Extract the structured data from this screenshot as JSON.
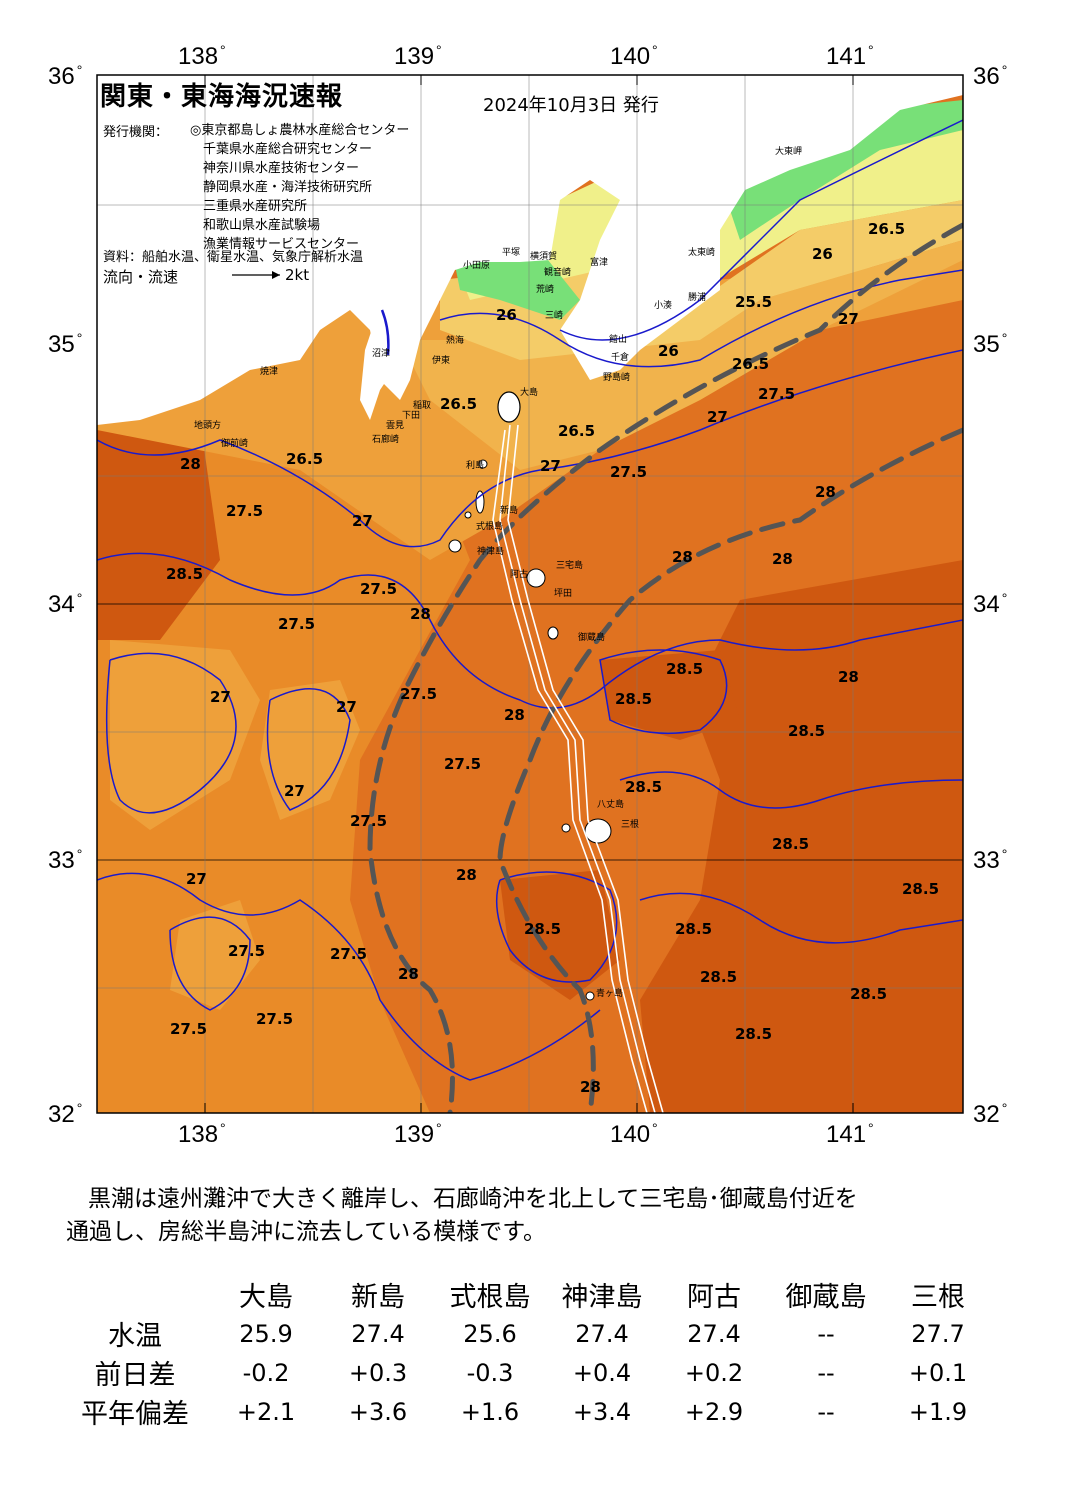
{
  "map": {
    "title": "関東・東海海況速報",
    "issued": "2024年10月3日 発行",
    "publisher_label": "発行機関：",
    "publishers": [
      "◎東京都島しょ農林水産総合センター",
      "千葉県水産総合研究センター",
      "神奈川県水産技術センター",
      "静岡県水産・海洋技術研究所",
      "三重県水産研究所",
      "和歌山県水産試験場",
      "漁業情報サービスセンター"
    ],
    "source": "資料：船舶水温、衛星水温、気象庁解析水温",
    "flow_label": "流向・流速",
    "flow_unit": "2kt",
    "lon_labels": [
      "138",
      "139",
      "140",
      "141"
    ],
    "lat_labels": [
      "36",
      "35",
      "34",
      "33",
      "32"
    ],
    "colors": {
      "sea_lt": "#f4cc68",
      "sea_25": "#f1b34c",
      "sea_27": "#eea03a",
      "sea_27_5": "#e98b28",
      "sea_28": "#e07220",
      "sea_28_5": "#cf5810",
      "coast_cold": "#78e078",
      "coast_yellow": "#f0f08a",
      "land": "#ffffff",
      "kuroshio": "#555555",
      "isotherm": "#1a1acc"
    },
    "places": [
      "大島",
      "利島",
      "新島",
      "式根島",
      "神津島",
      "三宅島",
      "坪田",
      "御蔵島",
      "八丈島",
      "三根",
      "大東岬",
      "太東崎",
      "勝浦",
      "小湊",
      "館山",
      "千倉",
      "野島崎",
      "富津",
      "観音崎",
      "荒崎",
      "三崎",
      "横須賀",
      "平塚",
      "小田原",
      "熱海",
      "伊東",
      "稲取",
      "下田",
      "石廊崎",
      "雲見",
      "焼津",
      "地頭方",
      "御前崎",
      "沼津",
      "阿古",
      "青ヶ島"
    ],
    "isotherm_labels": [
      "25.5",
      "26",
      "26.5",
      "27",
      "27.5",
      "28",
      "28.5"
    ]
  },
  "summary": {
    "line1": "黒潮は遠州灘沖で大きく離岸し、石廊崎沖を北上して三宅島･御蔵島付近を",
    "line2": "通過し、房総半島沖に流去している模様です。"
  },
  "table": {
    "headers": [
      "大島",
      "新島",
      "式根島",
      "神津島",
      "阿古",
      "御蔵島",
      "三根"
    ],
    "rows": [
      {
        "label": "水温",
        "values": [
          "25.9",
          "27.4",
          "25.6",
          "27.4",
          "27.4",
          "--",
          "27.7"
        ]
      },
      {
        "label": "前日差",
        "values": [
          "-0.2",
          "+0.3",
          "-0.3",
          "+0.4",
          "+0.2",
          "--",
          "+0.1"
        ]
      },
      {
        "label": "平年偏差",
        "values": [
          "+2.1",
          "+3.6",
          "+1.6",
          "+3.4",
          "+2.9",
          "--",
          "+1.9"
        ]
      }
    ]
  }
}
